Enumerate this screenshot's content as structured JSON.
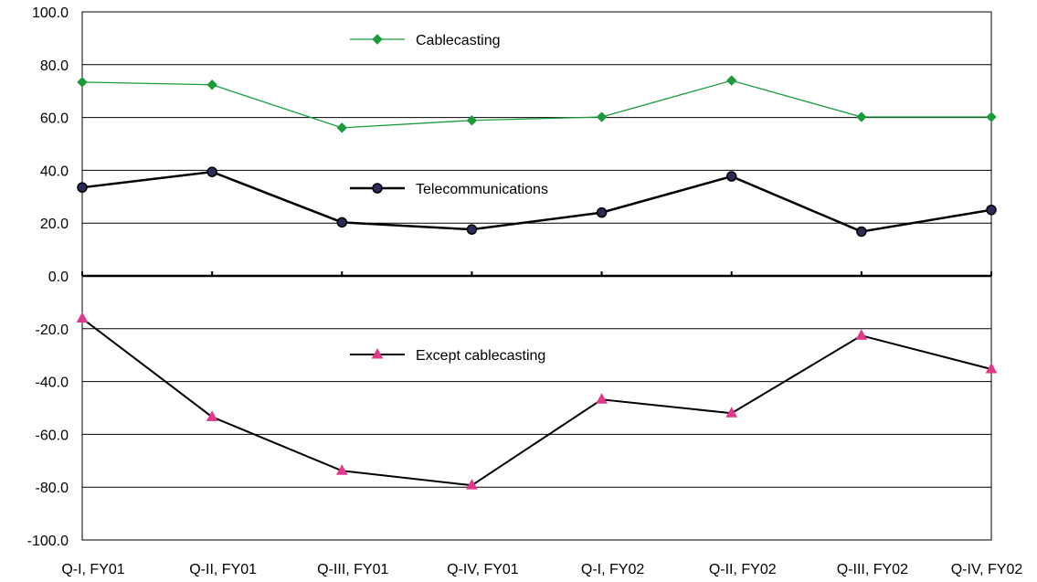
{
  "chart_data": {
    "type": "line",
    "categories": [
      "Q-I, FY01",
      "Q-II, FY01",
      "Q-III, FY01",
      "Q-IV, FY01",
      "Q-I, FY02",
      "Q-II, FY02",
      "Q-III, FY02",
      "Q-IV, FY02"
    ],
    "ylim": [
      -100,
      100
    ],
    "yticks": [
      "100.0",
      "80.0",
      "60.0",
      "40.0",
      "20.0",
      "0.0",
      "-20.0",
      "-40.0",
      "-60.0",
      "-80.0",
      "-100.0"
    ],
    "ytick_values": [
      100,
      80,
      60,
      40,
      20,
      0,
      -20,
      -40,
      -60,
      -80,
      -100
    ],
    "grid": true,
    "series": [
      {
        "name": "Cablecasting",
        "values": [
          73.4,
          72.4,
          56.1,
          58.9,
          60.2,
          74.0,
          60.2,
          60.2
        ],
        "color": "#1a9b3c",
        "marker": "diamond"
      },
      {
        "name": "Telecommunications",
        "values": [
          33.5,
          39.4,
          20.3,
          17.6,
          24.0,
          37.7,
          16.8,
          25.0
        ],
        "color": "#000000",
        "marker": "circle"
      },
      {
        "name": "Except cablecasting",
        "values": [
          -16.1,
          -53.4,
          -73.8,
          -79.3,
          -46.8,
          -52.0,
          -22.6,
          -35.3
        ],
        "color": "#000000",
        "marker": "triangle"
      }
    ]
  }
}
